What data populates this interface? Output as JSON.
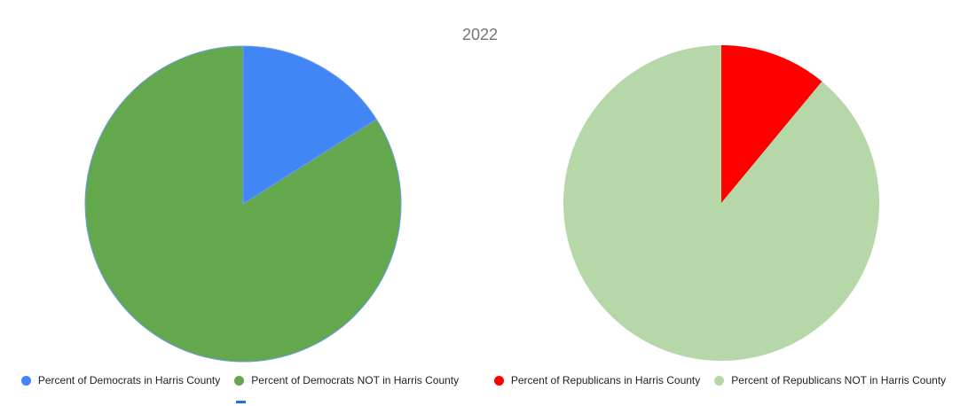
{
  "page": {
    "background": "#ffffff"
  },
  "header": {
    "title": "2022",
    "title_color": "#757575"
  },
  "chart_data": [
    {
      "type": "pie",
      "title": "2022",
      "legend_position": "bottom",
      "pie_border_color": "#6d9eeb",
      "slices": [
        {
          "label": "Percent of Democrats in Harris County",
          "value": 16,
          "color": "#4285f4"
        },
        {
          "label": "Percent of Democrats NOT in Harris County",
          "value": 84,
          "color": "#63a84c"
        }
      ]
    },
    {
      "type": "pie",
      "title": "2022",
      "legend_position": "bottom",
      "pie_border_color": "none",
      "slices": [
        {
          "label": "Percent of Republicans in Harris County",
          "value": 11,
          "color": "#ff0000"
        },
        {
          "label": "Percent of Republicans NOT in Harris County",
          "value": 89,
          "color": "#b6d7a8"
        }
      ]
    }
  ],
  "decorations": {
    "blue_dash_color": "#2b6be8"
  }
}
